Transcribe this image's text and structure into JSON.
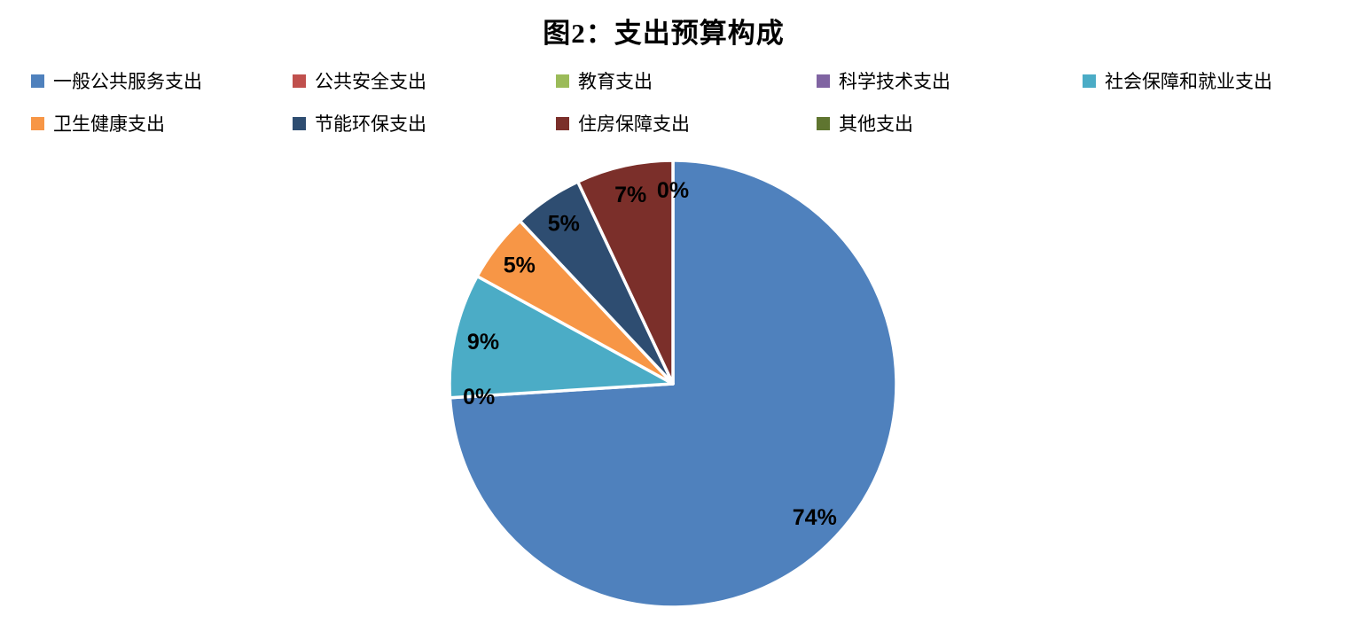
{
  "title": "图2：支出预算构成",
  "chart_data": {
    "type": "pie",
    "title": "图2：支出预算构成",
    "unit": "percent",
    "start_angle_deg": 0,
    "direction": "clockwise",
    "legend_position": "top",
    "slice_border_color": "#ffffff",
    "slices": [
      {
        "name": "一般公共服务支出",
        "value": 74,
        "label": "74%",
        "color": "#4F81BD"
      },
      {
        "name": "公共安全支出",
        "value": 0,
        "label": "0%",
        "color": "#C0504D"
      },
      {
        "name": "教育支出",
        "value": 0,
        "label": "",
        "color": "#9BBB59"
      },
      {
        "name": "科学技术支出",
        "value": 0,
        "label": "",
        "color": "#8064A2"
      },
      {
        "name": "社会保障和就业支出",
        "value": 9,
        "label": "9%",
        "color": "#4BACC6"
      },
      {
        "name": "卫生健康支出",
        "value": 5,
        "label": "5%",
        "color": "#F79646"
      },
      {
        "name": "节能环保支出",
        "value": 5,
        "label": "5%",
        "color": "#2E4D71"
      },
      {
        "name": "住房保障支出",
        "value": 7,
        "label": "7%",
        "color": "#7B2F2A"
      },
      {
        "name": "其他支出",
        "value": 0,
        "label": "0%",
        "color": "#5F7530"
      }
    ]
  }
}
